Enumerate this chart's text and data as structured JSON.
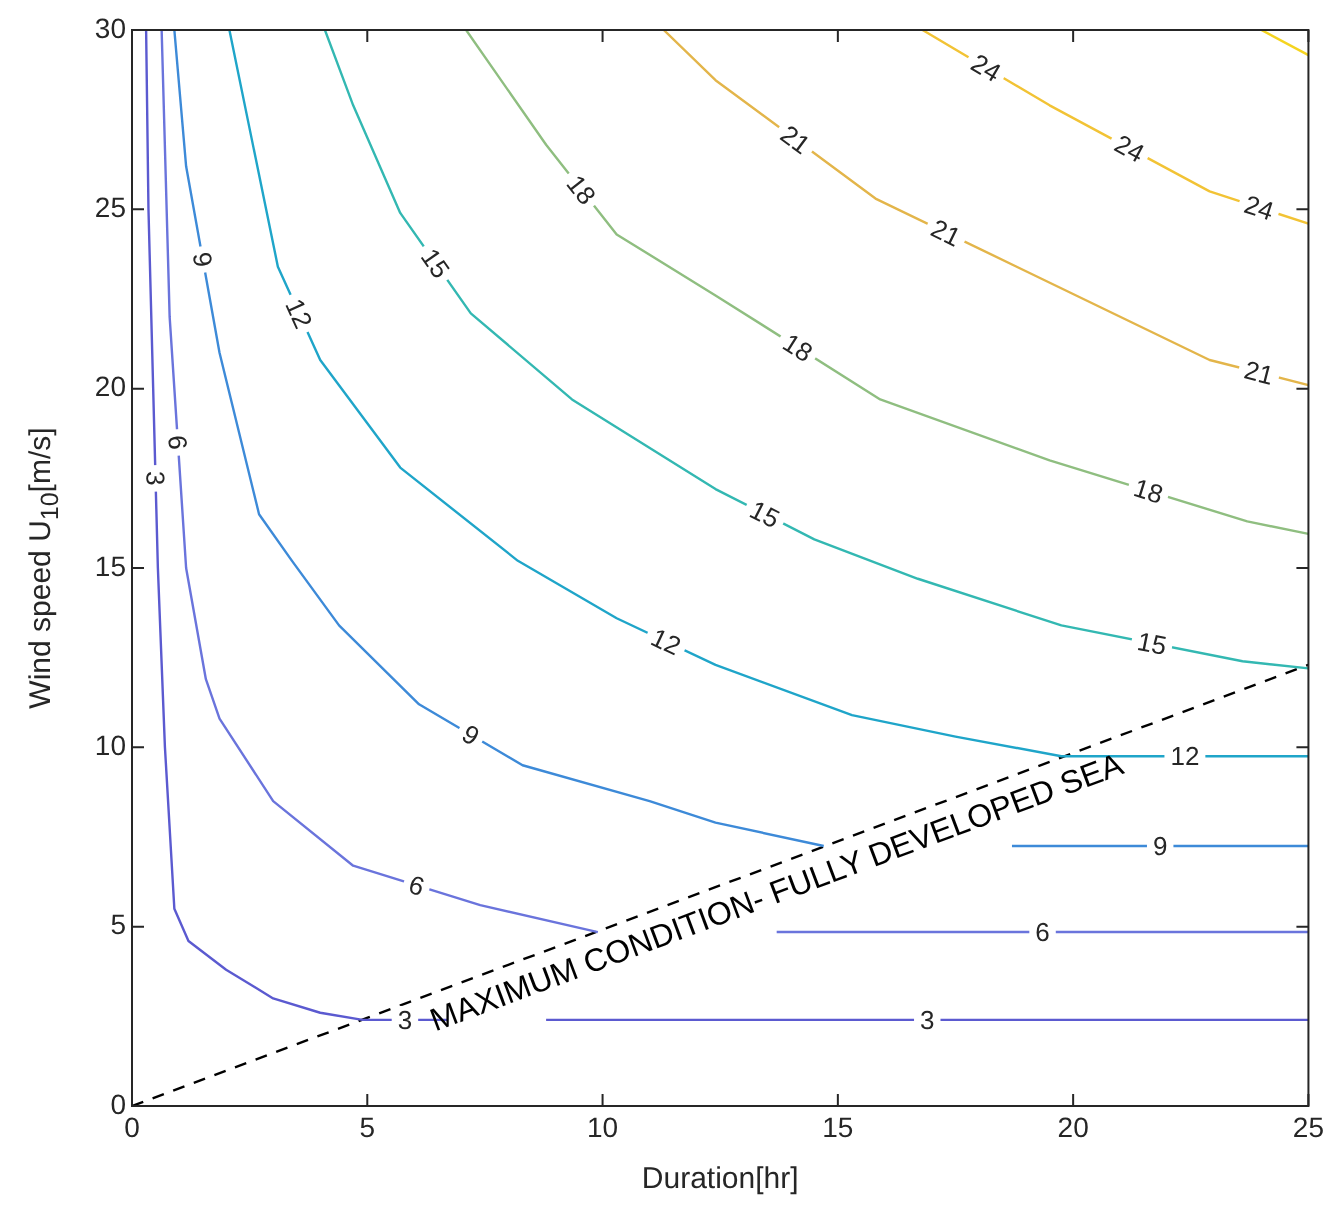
{
  "chart_data": {
    "type": "line",
    "xlabel": "Duration[hr]",
    "ylabel": "Wind speed U$_{10}$[m/s]",
    "xlim": [
      0,
      25
    ],
    "xticks": [
      0,
      5,
      10,
      15,
      20,
      25
    ],
    "ylim": [
      0,
      30
    ],
    "yticks": [
      0,
      5,
      10,
      15,
      20,
      25,
      30
    ],
    "grid": false,
    "legend": false,
    "marker": "none",
    "line_style": "solid",
    "annotations": [
      "MAXIMUM CONDITION- FULLY DEVELOPED SEA"
    ],
    "series": [
      {
        "name": "3",
        "color": "#5b5ad0",
        "x": [
          0.3,
          0.35,
          0.45,
          0.55,
          0.7,
          0.9,
          1.2,
          2,
          3,
          4,
          4.9,
          6.7,
          7.5,
          8.8,
          25
        ],
        "values": [
          30,
          25,
          20,
          15,
          10,
          5.5,
          4.6,
          3.8,
          3.0,
          2.6,
          2.4,
          2.4,
          null,
          2.4,
          2.4
        ]
      },
      {
        "name": "6",
        "color": "#6a74dc",
        "x": [
          0.63,
          0.8,
          1.15,
          1.57,
          1.86,
          3.0,
          4.7,
          7.4,
          9.9,
          11,
          13.7,
          25
        ],
        "values": [
          30,
          22,
          15,
          11.9,
          10.8,
          8.5,
          6.7,
          5.6,
          4.85,
          null,
          4.85,
          4.85
        ]
      },
      {
        "name": "9",
        "color": "#3d8ad8",
        "x": [
          0.9,
          1.15,
          1.86,
          2.7,
          3.4,
          4.4,
          6.1,
          8.3,
          11.0,
          12.4,
          14.7,
          16,
          18.7,
          25
        ],
        "values": [
          30,
          26.2,
          21,
          16.5,
          15.2,
          13.4,
          11.2,
          9.5,
          8.5,
          7.9,
          7.25,
          null,
          7.25,
          7.25
        ]
      },
      {
        "name": "12",
        "color": "#1fa5c9",
        "x": [
          2.07,
          3.1,
          4.0,
          5.7,
          8.2,
          10.3,
          12.4,
          15.3,
          17.5,
          19.75,
          25
        ],
        "values": [
          30,
          23.4,
          20.8,
          17.8,
          15.2,
          13.6,
          12.3,
          10.9,
          10.3,
          9.75,
          9.75
        ]
      },
      {
        "name": "15",
        "color": "#33b8b2",
        "x": [
          4.1,
          4.7,
          5.7,
          7.2,
          9.35,
          12.4,
          14.5,
          16.7,
          19.75,
          23.6,
          25
        ],
        "values": [
          30,
          27.9,
          24.9,
          22.1,
          19.7,
          17.2,
          15.8,
          14.7,
          13.4,
          12.4,
          12.2
        ]
      },
      {
        "name": "18",
        "color": "#8fbe80",
        "x": [
          7.1,
          8.8,
          10.3,
          12.4,
          15.9,
          19.5,
          23.7,
          25
        ],
        "values": [
          30,
          26.8,
          24.3,
          22.6,
          19.7,
          18.0,
          16.3,
          15.95
        ]
      },
      {
        "name": "21",
        "color": "#e3b54a",
        "x": [
          11.3,
          12.4,
          15.8,
          18.8,
          22.9,
          25
        ],
        "values": [
          30,
          28.6,
          25.3,
          23.4,
          20.8,
          20.1
        ]
      },
      {
        "name": "24",
        "color": "#f2c335",
        "x": [
          16.8,
          19.5,
          22.9,
          25
        ],
        "values": [
          30,
          27.9,
          25.5,
          24.6
        ]
      },
      {
        "color": "#f5d41f",
        "x": [
          24.0,
          25
        ],
        "values": [
          30,
          29.3
        ]
      },
      {
        "color": "#000000",
        "line_style": "dashed",
        "x": [
          0,
          25
        ],
        "values": [
          0,
          12.3
        ]
      }
    ]
  }
}
